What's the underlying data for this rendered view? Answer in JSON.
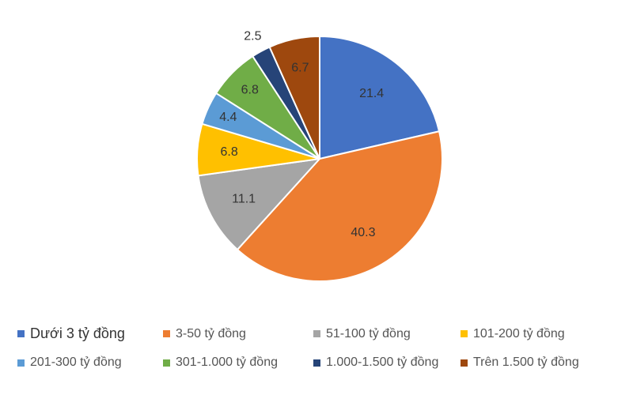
{
  "chart_data": {
    "type": "pie",
    "categories": [
      "Dưới 3 tỷ đồng",
      "3-50 tỷ đồng",
      "51-100 tỷ đồng",
      "101-200 tỷ đồng",
      "201-300 tỷ đồng",
      "301-1.000 tỷ đồng",
      "1.000-1.500 tỷ đồng",
      "Trên 1.500 tỷ đồng"
    ],
    "values": [
      21.4,
      40.3,
      11.1,
      6.8,
      4.4,
      6.8,
      2.5,
      6.7
    ],
    "data_labels": [
      "21.4",
      "40.3",
      "11.1",
      "6.8",
      "4.4",
      "6.8",
      "2.5",
      "6.7"
    ],
    "colors": [
      "#4472C4",
      "#ED7D31",
      "#A5A5A5",
      "#FFC000",
      "#5B9BD5",
      "#70AD47",
      "#264478",
      "#9E480E"
    ],
    "start_angle": "12 o'clock",
    "direction": "clockwise",
    "legend_position": "bottom",
    "title": ""
  }
}
